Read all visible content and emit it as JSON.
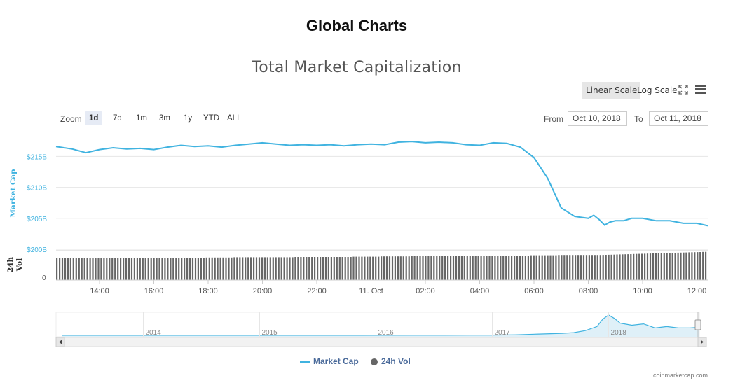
{
  "page": {
    "title": "Global Charts",
    "credit": "coinmarketcap.com"
  },
  "toolbar": {
    "scale_buttons": [
      "Linear Scale",
      "Log Scale"
    ],
    "active_scale": "Linear Scale",
    "zoom_label": "Zoom",
    "zoom_buttons": [
      "1d",
      "7d",
      "1m",
      "3m",
      "1y",
      "YTD",
      "ALL"
    ],
    "active_zoom": "1d",
    "from_label": "From",
    "from_value": "Oct 10, 2018",
    "to_label": "To",
    "to_value": "Oct 11, 2018",
    "icons": [
      "fullscreen-icon",
      "menu-icon"
    ]
  },
  "colors": {
    "market_cap": "#40b3e0",
    "volume": "#666666",
    "grid": "#e6e6e6",
    "navigator_fill": "#dff0f8"
  },
  "chart_data": [
    {
      "type": "line",
      "title": "Total Market Capitalization",
      "ylabel": "Market Cap",
      "y_ticks": [
        "$200B",
        "$205B",
        "$210B",
        "$215B"
      ],
      "ylim": [
        200,
        219
      ],
      "y_unit": "B USD",
      "x_ticks": [
        "14:00",
        "16:00",
        "18:00",
        "20:00",
        "22:00",
        "11. Oct",
        "02:00",
        "04:00",
        "06:00",
        "08:00",
        "10:00",
        "12:00"
      ],
      "x_hours": [
        12.4,
        13,
        13.5,
        14,
        14.5,
        15,
        15.5,
        16,
        16.5,
        17,
        17.5,
        18,
        18.5,
        19,
        19.5,
        20,
        20.5,
        21,
        21.5,
        22,
        22.5,
        23,
        23.5,
        24,
        24.5,
        25,
        25.5,
        26,
        26.5,
        27,
        27.5,
        28,
        28.5,
        29,
        29.5,
        30,
        30.5,
        31,
        31.5,
        32,
        32.2,
        32.4,
        32.6,
        32.8,
        33,
        33.3,
        33.6,
        34,
        34.5,
        35,
        35.5,
        36,
        36.4
      ],
      "series": [
        {
          "name": "Market Cap",
          "values": [
            216.6,
            216.2,
            215.6,
            216.1,
            216.4,
            216.2,
            216.3,
            216.1,
            216.5,
            216.8,
            216.6,
            216.7,
            216.5,
            216.8,
            217.0,
            217.2,
            217.0,
            216.8,
            216.9,
            216.8,
            216.9,
            216.7,
            216.9,
            217.0,
            216.9,
            217.3,
            217.4,
            217.2,
            217.3,
            217.2,
            216.9,
            216.8,
            217.2,
            217.1,
            216.5,
            214.8,
            211.5,
            206.7,
            205.3,
            205.0,
            205.5,
            204.8,
            203.9,
            204.4,
            204.6,
            204.6,
            205.0,
            205.0,
            204.6,
            204.6,
            204.2,
            204.2,
            203.8
          ]
        },
        {
          "name": "24h Vol",
          "type": "bar",
          "relative_level": [
            0.72,
            0.72,
            0.72,
            0.72,
            0.72,
            0.73,
            0.74,
            0.74,
            0.75,
            0.75,
            0.76,
            0.77,
            0.78,
            0.78,
            0.79,
            0.8,
            0.81,
            0.82,
            0.82,
            0.83,
            0.84,
            0.85
          ]
        }
      ]
    },
    {
      "type": "area",
      "title": "",
      "x_ticks": [
        "2014",
        "2015",
        "2016",
        "2017",
        "2018"
      ],
      "x_years": [
        2013.3,
        2013.8,
        2014.3,
        2014.8,
        2015.3,
        2015.8,
        2016.3,
        2016.8,
        2017.0,
        2017.2,
        2017.4,
        2017.5,
        2017.6,
        2017.7,
        2017.8,
        2017.9,
        2017.95,
        2018.0,
        2018.05,
        2018.1,
        2018.2,
        2018.3,
        2018.4,
        2018.5,
        2018.6,
        2018.7,
        2018.78
      ],
      "values": [
        1,
        1,
        1,
        1,
        1,
        1.5,
        2,
        3,
        4,
        8,
        20,
        25,
        30,
        40,
        70,
        130,
        240,
        300,
        250,
        180,
        150,
        170,
        110,
        130,
        110,
        110,
        120
      ]
    }
  ]
}
